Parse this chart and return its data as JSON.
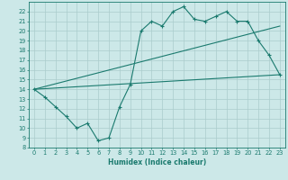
{
  "title": "",
  "xlabel": "Humidex (Indice chaleur)",
  "bg_color": "#cce8e8",
  "grid_color": "#aacccc",
  "line_color": "#1a7a6e",
  "xlim": [
    -0.5,
    23.5
  ],
  "ylim": [
    8,
    23
  ],
  "xticks": [
    0,
    1,
    2,
    3,
    4,
    5,
    6,
    7,
    8,
    9,
    10,
    11,
    12,
    13,
    14,
    15,
    16,
    17,
    18,
    19,
    20,
    21,
    22,
    23
  ],
  "yticks": [
    8,
    9,
    10,
    11,
    12,
    13,
    14,
    15,
    16,
    17,
    18,
    19,
    20,
    21,
    22
  ],
  "series1_x": [
    0,
    1,
    2,
    3,
    4,
    5,
    6,
    7,
    8,
    9,
    10,
    11,
    12,
    13,
    14,
    15,
    16,
    17,
    18,
    19,
    20,
    21,
    22,
    23
  ],
  "series1_y": [
    14.0,
    13.2,
    12.2,
    11.2,
    10.0,
    10.5,
    8.7,
    9.0,
    12.2,
    14.5,
    20.0,
    21.0,
    20.5,
    22.0,
    22.5,
    21.2,
    21.0,
    21.5,
    22.0,
    21.0,
    21.0,
    19.0,
    17.5,
    15.5
  ],
  "series2_x": [
    0,
    23
  ],
  "series2_y": [
    14.0,
    20.5
  ],
  "series3_x": [
    0,
    23
  ],
  "series3_y": [
    14.0,
    15.5
  ],
  "xlabel_fontsize": 5.5,
  "tick_fontsize": 4.8
}
